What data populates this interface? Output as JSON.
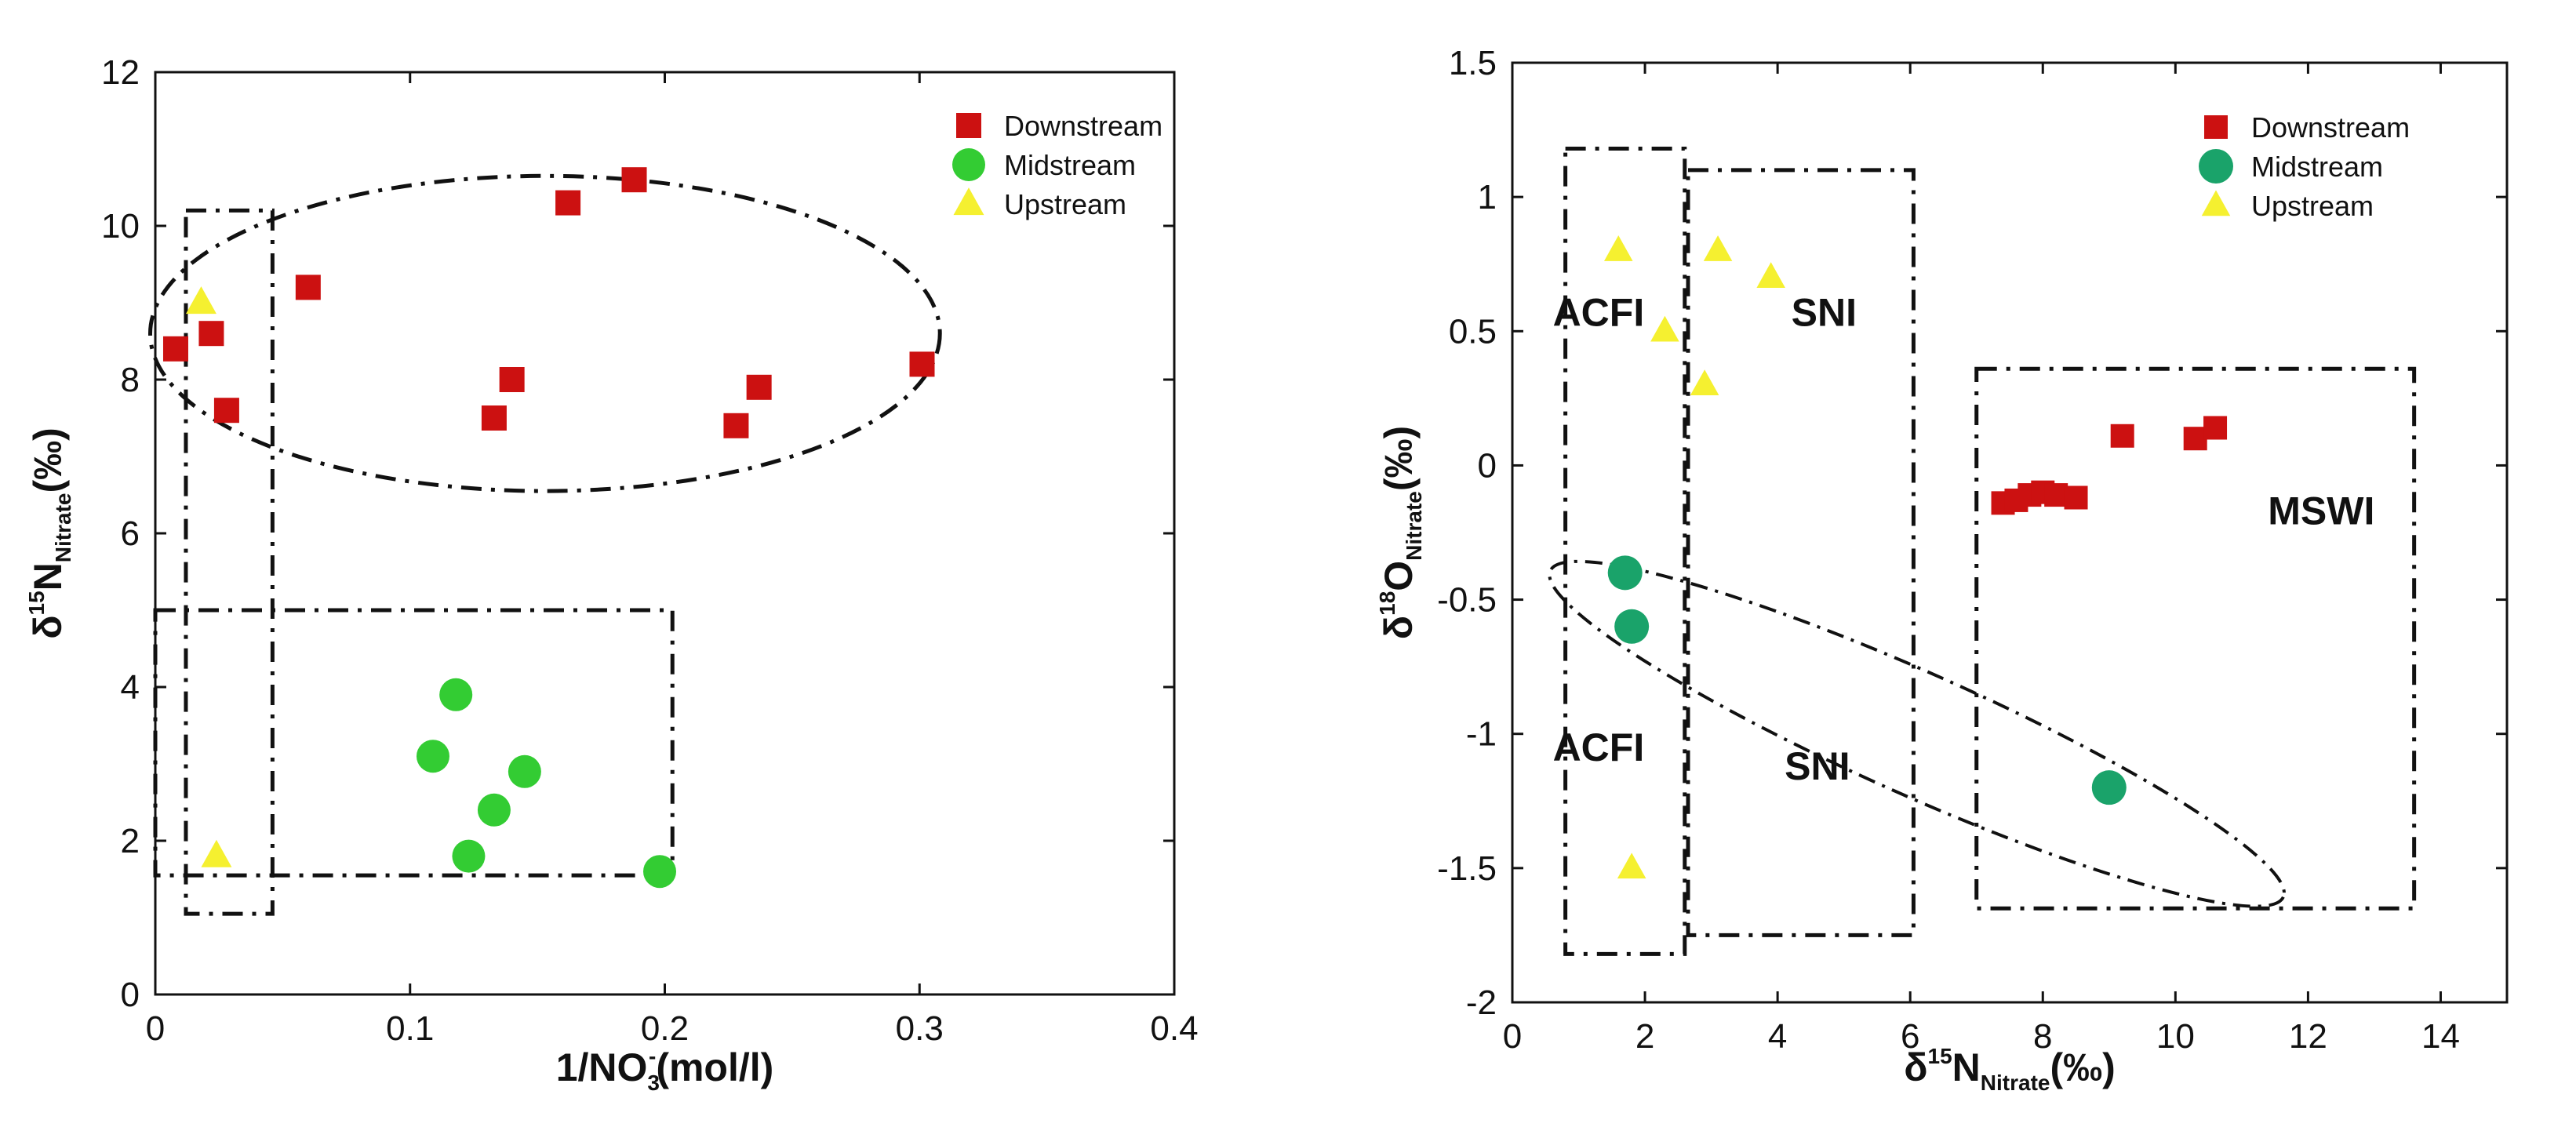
{
  "colors": {
    "downstream": "#cc1111",
    "midstream_left": "#33cc33",
    "midstream_right": "#1aa36a",
    "upstream": "#f5f030",
    "axis": "#111111"
  },
  "chart_data": [
    {
      "type": "scatter",
      "title": "",
      "xlabel": {
        "main": "1/NO",
        "sub": "3",
        "sup": "-",
        "tail": "(mol/l)"
      },
      "ylabel": {
        "main": "δ",
        "sup": "15",
        "base": "N",
        "sub": "Nitrate",
        "tail": "(‰)"
      },
      "xlim": [
        0,
        0.4
      ],
      "ylim": [
        0,
        12
      ],
      "xticks": [
        0,
        0.1,
        0.2,
        0.3,
        0.4
      ],
      "xtick_labels": [
        "0",
        "0.1",
        "0.2",
        "0.3",
        "0.4"
      ],
      "yticks": [
        0,
        2,
        4,
        6,
        8,
        10,
        12
      ],
      "ytick_labels": [
        "0",
        "2",
        "4",
        "6",
        "8",
        "10",
        "12"
      ],
      "legend_position": "top-right",
      "legend": [
        "Downstream",
        "Midstream",
        "Upstream"
      ],
      "series": [
        {
          "name": "Downstream",
          "marker": "square",
          "color_key": "downstream",
          "points": [
            [
              0.008,
              8.4
            ],
            [
              0.022,
              8.6
            ],
            [
              0.028,
              7.6
            ],
            [
              0.06,
              9.2
            ],
            [
              0.133,
              7.5
            ],
            [
              0.14,
              8.0
            ],
            [
              0.162,
              10.3
            ],
            [
              0.188,
              10.6
            ],
            [
              0.228,
              7.4
            ],
            [
              0.237,
              7.9
            ],
            [
              0.301,
              8.2
            ]
          ]
        },
        {
          "name": "Midstream",
          "marker": "circle",
          "color_key": "midstream_left",
          "points": [
            [
              0.109,
              3.1
            ],
            [
              0.118,
              3.9
            ],
            [
              0.123,
              1.8
            ],
            [
              0.133,
              2.4
            ],
            [
              0.145,
              2.9
            ],
            [
              0.198,
              1.6
            ]
          ]
        },
        {
          "name": "Upstream",
          "marker": "triangle",
          "color_key": "upstream",
          "points": [
            [
              0.018,
              9.0
            ],
            [
              0.024,
              1.8
            ]
          ]
        }
      ],
      "rectangles": [
        {
          "x0": 0.012,
          "x1": 0.046,
          "y0": 1.05,
          "y1": 10.2
        },
        {
          "x0": 0.0,
          "x1": 0.203,
          "y0": 1.55,
          "y1": 5.0
        }
      ],
      "ellipses": [
        {
          "cx": 0.153,
          "cy": 8.6,
          "rx": 0.155,
          "ry": 2.05
        }
      ],
      "region_labels": []
    },
    {
      "type": "scatter",
      "title": "",
      "xlabel": {
        "main": "δ",
        "sup": "15",
        "base": "N",
        "sub": "Nitrate",
        "tail": "(‰)"
      },
      "ylabel": {
        "main": "δ",
        "sup": "18",
        "base": "O",
        "sub": "Nitrate",
        "tail": "(‰)"
      },
      "xlim": [
        0,
        15
      ],
      "ylim": [
        -2,
        1.5
      ],
      "xticks": [
        0,
        2,
        4,
        6,
        8,
        10,
        12,
        14
      ],
      "xtick_labels": [
        "0",
        "2",
        "4",
        "6",
        "8",
        "10",
        "12",
        "14"
      ],
      "yticks": [
        -2,
        -1.5,
        -1,
        -0.5,
        0,
        0.5,
        1,
        1.5
      ],
      "ytick_labels": [
        "-2",
        "-1.5",
        "-1",
        "-0.5",
        "0",
        "0.5",
        "1",
        "1.5"
      ],
      "legend_position": "top-right",
      "legend": [
        "Downstream",
        "Midstream",
        "Upstream"
      ],
      "series": [
        {
          "name": "Downstream",
          "marker": "square",
          "color_key": "downstream",
          "points": [
            [
              7.4,
              -0.14
            ],
            [
              7.6,
              -0.13
            ],
            [
              7.8,
              -0.11
            ],
            [
              8.0,
              -0.1
            ],
            [
              8.2,
              -0.11
            ],
            [
              8.5,
              -0.12
            ],
            [
              9.2,
              0.11
            ],
            [
              10.3,
              0.1
            ],
            [
              10.6,
              0.14
            ]
          ]
        },
        {
          "name": "Midstream",
          "marker": "circle",
          "color_key": "midstream_right",
          "points": [
            [
              1.7,
              -0.4
            ],
            [
              1.8,
              -0.6
            ],
            [
              9.0,
              -1.2
            ]
          ]
        },
        {
          "name": "Upstream",
          "marker": "triangle",
          "color_key": "upstream",
          "points": [
            [
              1.6,
              0.8
            ],
            [
              2.3,
              0.5
            ],
            [
              2.9,
              0.3
            ],
            [
              3.1,
              0.8
            ],
            [
              3.9,
              0.7
            ],
            [
              1.8,
              -1.5
            ]
          ]
        }
      ],
      "rectangles": [
        {
          "x0": 0.8,
          "x1": 2.6,
          "y0": -1.82,
          "y1": 1.18
        },
        {
          "x0": 2.65,
          "x1": 6.05,
          "y0": -1.75,
          "y1": 1.1
        },
        {
          "x0": 7.0,
          "x1": 13.6,
          "y0": -1.65,
          "y1": 0.36
        }
      ],
      "ellipses": [
        {
          "cx": 6.1,
          "cy": -1.0,
          "rx": 6.05,
          "ry": 0.62,
          "angle": 24
        }
      ],
      "region_labels": [
        {
          "text": "ACFI",
          "x": 1.3,
          "y": 0.52
        },
        {
          "text": "SNI",
          "x": 4.7,
          "y": 0.52
        },
        {
          "text": "ACFI",
          "x": 1.3,
          "y": -1.1
        },
        {
          "text": "SNI",
          "x": 4.6,
          "y": -1.17
        },
        {
          "text": "MSWI",
          "x": 12.2,
          "y": -0.22
        }
      ]
    }
  ]
}
